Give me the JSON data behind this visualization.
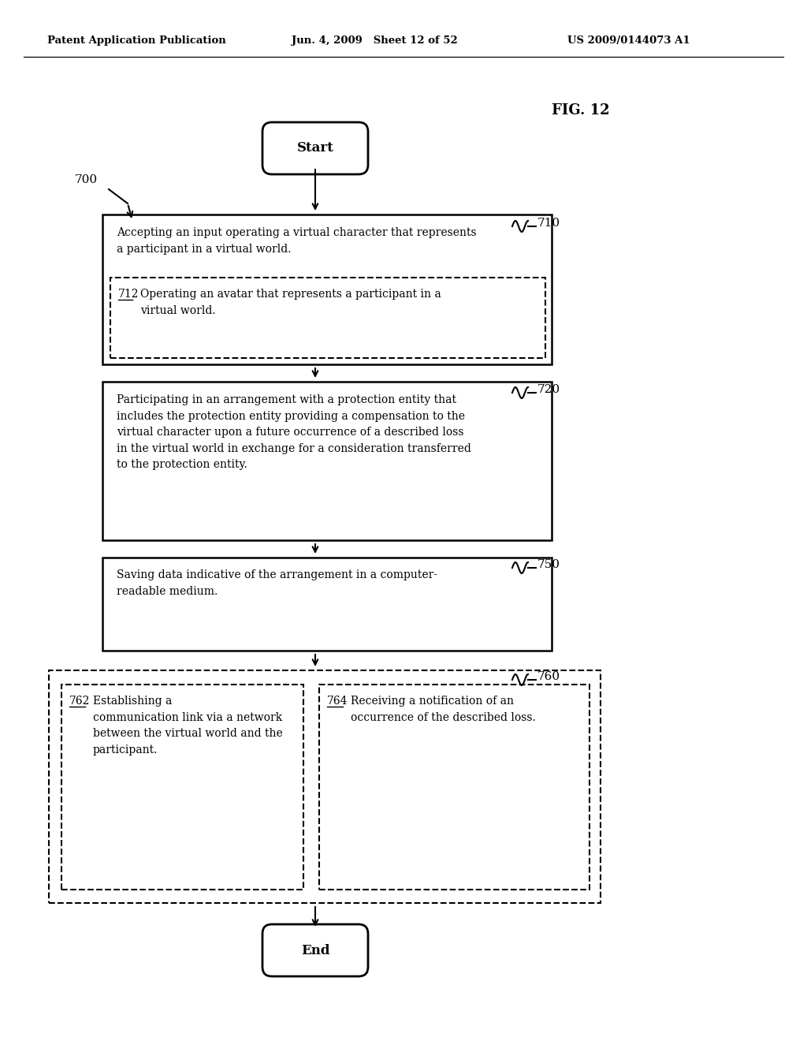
{
  "header_left": "Patent Application Publication",
  "header_mid": "Jun. 4, 2009   Sheet 12 of 52",
  "header_right": "US 2009/0144073 A1",
  "fig_label": "FIG. 12",
  "bg_color": "#ffffff",
  "text_color": "#000000",
  "start_text": "Start",
  "end_text": "End",
  "label_700": "700",
  "label_710": "710",
  "label_720": "720",
  "label_750": "750",
  "label_760": "760",
  "box710_main": "Accepting an input operating a virtual character that represents\na participant in a virtual world.",
  "box710_sub_label": "712",
  "box710_sub_text": "Operating an avatar that represents a participant in a\nvirtual world.",
  "box720_text": "Participating in an arrangement with a protection entity that\nincludes the protection entity providing a compensation to the\nvirtual character upon a future occurrence of a described loss\nin the virtual world in exchange for a consideration transferred\nto the protection entity.",
  "box750_text": "Saving data indicative of the arrangement in a computer-\nreadable medium.",
  "box762_label": "762",
  "box762_text": "Establishing a\ncommunication link via a network\nbetween the virtual world and the\nparticipant.",
  "box764_label": "764",
  "box764_text": "Receiving a notification of an\noccurrence of the described loss."
}
